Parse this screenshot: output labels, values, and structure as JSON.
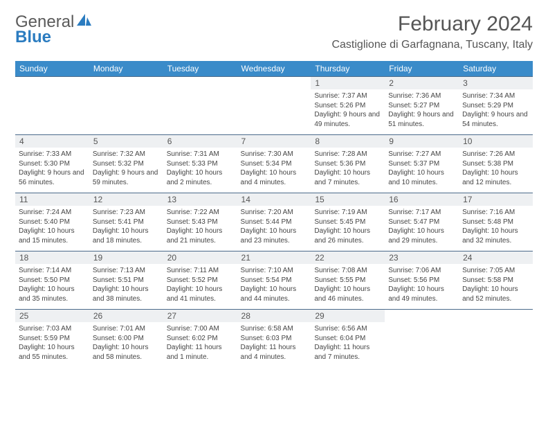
{
  "brand": {
    "part1": "General",
    "part2": "Blue"
  },
  "title": "February 2024",
  "location": "Castiglione di Garfagnana, Tuscany, Italy",
  "colors": {
    "header_bg": "#3a8bc9",
    "header_fg": "#ffffff",
    "daynum_bg": "#eef0f2",
    "rule": "#4a6a8a",
    "text": "#444444",
    "title": "#555555",
    "brand_gray": "#5a5a5a",
    "brand_blue": "#2b7cc0"
  },
  "dow": [
    "Sunday",
    "Monday",
    "Tuesday",
    "Wednesday",
    "Thursday",
    "Friday",
    "Saturday"
  ],
  "weeks": [
    [
      null,
      null,
      null,
      null,
      {
        "n": "1",
        "sr": "7:37 AM",
        "ss": "5:26 PM",
        "dl": "9 hours and 49 minutes."
      },
      {
        "n": "2",
        "sr": "7:36 AM",
        "ss": "5:27 PM",
        "dl": "9 hours and 51 minutes."
      },
      {
        "n": "3",
        "sr": "7:34 AM",
        "ss": "5:29 PM",
        "dl": "9 hours and 54 minutes."
      }
    ],
    [
      {
        "n": "4",
        "sr": "7:33 AM",
        "ss": "5:30 PM",
        "dl": "9 hours and 56 minutes."
      },
      {
        "n": "5",
        "sr": "7:32 AM",
        "ss": "5:32 PM",
        "dl": "9 hours and 59 minutes."
      },
      {
        "n": "6",
        "sr": "7:31 AM",
        "ss": "5:33 PM",
        "dl": "10 hours and 2 minutes."
      },
      {
        "n": "7",
        "sr": "7:30 AM",
        "ss": "5:34 PM",
        "dl": "10 hours and 4 minutes."
      },
      {
        "n": "8",
        "sr": "7:28 AM",
        "ss": "5:36 PM",
        "dl": "10 hours and 7 minutes."
      },
      {
        "n": "9",
        "sr": "7:27 AM",
        "ss": "5:37 PM",
        "dl": "10 hours and 10 minutes."
      },
      {
        "n": "10",
        "sr": "7:26 AM",
        "ss": "5:38 PM",
        "dl": "10 hours and 12 minutes."
      }
    ],
    [
      {
        "n": "11",
        "sr": "7:24 AM",
        "ss": "5:40 PM",
        "dl": "10 hours and 15 minutes."
      },
      {
        "n": "12",
        "sr": "7:23 AM",
        "ss": "5:41 PM",
        "dl": "10 hours and 18 minutes."
      },
      {
        "n": "13",
        "sr": "7:22 AM",
        "ss": "5:43 PM",
        "dl": "10 hours and 21 minutes."
      },
      {
        "n": "14",
        "sr": "7:20 AM",
        "ss": "5:44 PM",
        "dl": "10 hours and 23 minutes."
      },
      {
        "n": "15",
        "sr": "7:19 AM",
        "ss": "5:45 PM",
        "dl": "10 hours and 26 minutes."
      },
      {
        "n": "16",
        "sr": "7:17 AM",
        "ss": "5:47 PM",
        "dl": "10 hours and 29 minutes."
      },
      {
        "n": "17",
        "sr": "7:16 AM",
        "ss": "5:48 PM",
        "dl": "10 hours and 32 minutes."
      }
    ],
    [
      {
        "n": "18",
        "sr": "7:14 AM",
        "ss": "5:50 PM",
        "dl": "10 hours and 35 minutes."
      },
      {
        "n": "19",
        "sr": "7:13 AM",
        "ss": "5:51 PM",
        "dl": "10 hours and 38 minutes."
      },
      {
        "n": "20",
        "sr": "7:11 AM",
        "ss": "5:52 PM",
        "dl": "10 hours and 41 minutes."
      },
      {
        "n": "21",
        "sr": "7:10 AM",
        "ss": "5:54 PM",
        "dl": "10 hours and 44 minutes."
      },
      {
        "n": "22",
        "sr": "7:08 AM",
        "ss": "5:55 PM",
        "dl": "10 hours and 46 minutes."
      },
      {
        "n": "23",
        "sr": "7:06 AM",
        "ss": "5:56 PM",
        "dl": "10 hours and 49 minutes."
      },
      {
        "n": "24",
        "sr": "7:05 AM",
        "ss": "5:58 PM",
        "dl": "10 hours and 52 minutes."
      }
    ],
    [
      {
        "n": "25",
        "sr": "7:03 AM",
        "ss": "5:59 PM",
        "dl": "10 hours and 55 minutes."
      },
      {
        "n": "26",
        "sr": "7:01 AM",
        "ss": "6:00 PM",
        "dl": "10 hours and 58 minutes."
      },
      {
        "n": "27",
        "sr": "7:00 AM",
        "ss": "6:02 PM",
        "dl": "11 hours and 1 minute."
      },
      {
        "n": "28",
        "sr": "6:58 AM",
        "ss": "6:03 PM",
        "dl": "11 hours and 4 minutes."
      },
      {
        "n": "29",
        "sr": "6:56 AM",
        "ss": "6:04 PM",
        "dl": "11 hours and 7 minutes."
      },
      null,
      null
    ]
  ],
  "labels": {
    "sunrise": "Sunrise:",
    "sunset": "Sunset:",
    "daylight": "Daylight:"
  }
}
